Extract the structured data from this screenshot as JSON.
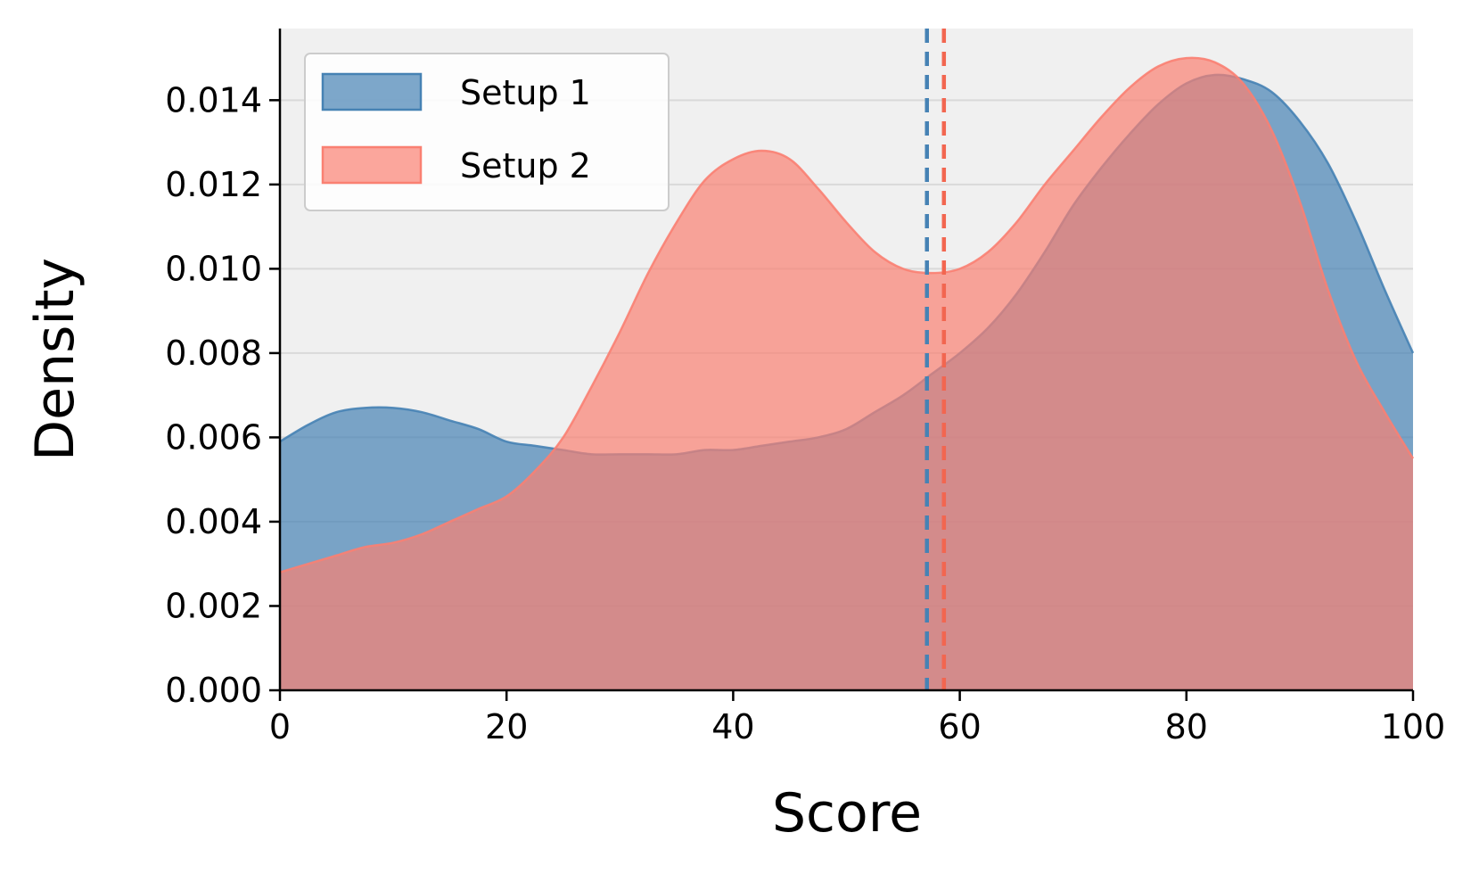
{
  "chart_data": {
    "type": "area",
    "title": "",
    "xlabel": "Score",
    "ylabel": "Density",
    "xlim": [
      0,
      100
    ],
    "ylim": [
      0,
      0.0157
    ],
    "xticks": [
      0,
      20,
      40,
      60,
      80,
      100
    ],
    "yticks": [
      0.0,
      0.002,
      0.004,
      0.006,
      0.008,
      0.01,
      0.012,
      0.014
    ],
    "xtick_labels": [
      "0",
      "20",
      "40",
      "60",
      "80",
      "100"
    ],
    "ytick_labels": [
      "0.000",
      "0.002",
      "0.004",
      "0.006",
      "0.008",
      "0.010",
      "0.012",
      "0.014"
    ],
    "grid": "horizontal",
    "legend_position": "top-left",
    "background": "#f0f0f0",
    "series": [
      {
        "name": "Setup 1",
        "color": "#4682b4",
        "mean": 57.1,
        "x": [
          0,
          2.5,
          5,
          7.5,
          10,
          12.5,
          15,
          17.5,
          20,
          22.5,
          25,
          27.5,
          30,
          32.5,
          35,
          37.5,
          40,
          42.5,
          45,
          47.5,
          50,
          52.5,
          55,
          57.5,
          60,
          62.5,
          65,
          67.5,
          70,
          72.5,
          75,
          77.5,
          80,
          82.5,
          85,
          87.5,
          90,
          92.5,
          95,
          97.5,
          100
        ],
        "values": [
          0.0059,
          0.0063,
          0.0066,
          0.0067,
          0.0067,
          0.0066,
          0.0064,
          0.0062,
          0.0059,
          0.0058,
          0.0057,
          0.0056,
          0.0056,
          0.0056,
          0.0056,
          0.0057,
          0.0057,
          0.0058,
          0.0059,
          0.006,
          0.0062,
          0.0066,
          0.007,
          0.0075,
          0.008,
          0.0086,
          0.0094,
          0.0104,
          0.0115,
          0.0124,
          0.0132,
          0.0139,
          0.0144,
          0.0146,
          0.0145,
          0.0142,
          0.0135,
          0.0125,
          0.0111,
          0.0095,
          0.008
        ]
      },
      {
        "name": "Setup 2",
        "color": "#fa8072",
        "mean": 58.6,
        "x": [
          0,
          2.5,
          5,
          7.5,
          10,
          12.5,
          15,
          17.5,
          20,
          22.5,
          25,
          27.5,
          30,
          32.5,
          35,
          37.5,
          40,
          42.5,
          45,
          47.5,
          50,
          52.5,
          55,
          57.5,
          60,
          62.5,
          65,
          67.5,
          70,
          72.5,
          75,
          77.5,
          80,
          82.5,
          85,
          87.5,
          90,
          92.5,
          95,
          97.5,
          100
        ],
        "values": [
          0.0028,
          0.003,
          0.0032,
          0.0034,
          0.0035,
          0.0037,
          0.004,
          0.0043,
          0.0046,
          0.0052,
          0.006,
          0.0072,
          0.0085,
          0.0099,
          0.0111,
          0.0121,
          0.0126,
          0.0128,
          0.0126,
          0.0119,
          0.0111,
          0.0104,
          0.01,
          0.0099,
          0.01,
          0.0104,
          0.0111,
          0.012,
          0.0128,
          0.0136,
          0.0143,
          0.0148,
          0.015,
          0.0149,
          0.0144,
          0.0133,
          0.0116,
          0.0095,
          0.0078,
          0.0066,
          0.0055
        ]
      }
    ]
  }
}
